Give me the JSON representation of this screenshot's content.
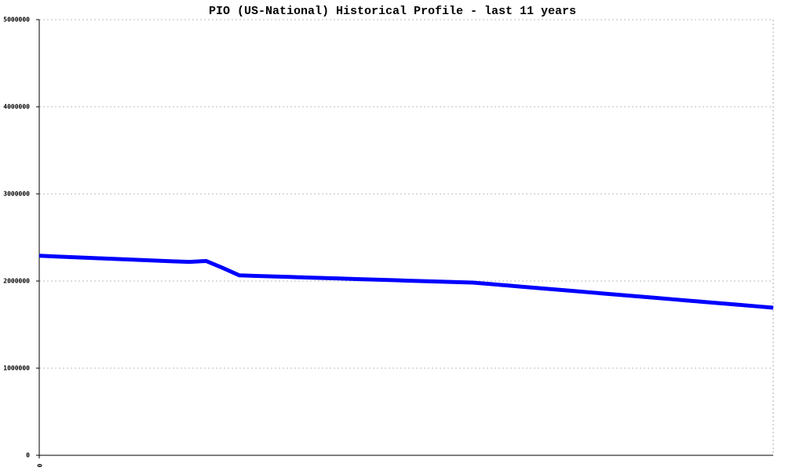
{
  "chart_data": {
    "type": "line",
    "title": "PIO (US-National) Historical Profile - last 11 years",
    "categories": [
      "0",
      null,
      null,
      null,
      null,
      null,
      null,
      null,
      null,
      null,
      null,
      null,
      null,
      null,
      null,
      null,
      null,
      null,
      null,
      null,
      null,
      null,
      null,
      null,
      null,
      null,
      null,
      null,
      null,
      null,
      null,
      null,
      null,
      null,
      null,
      null,
      null,
      null,
      null,
      null,
      null,
      null,
      null,
      null,
      null
    ],
    "series": [
      {
        "color": "#0000ff",
        "values": [
          2290000,
          2282000,
          2274000,
          2266000,
          2258000,
          2250000,
          2242000,
          2234000,
          2226000,
          2220000,
          2230000,
          2150000,
          2065000,
          2059000,
          2053000,
          2047000,
          2041000,
          2035000,
          2029000,
          2023000,
          2017000,
          2011000,
          2005000,
          1999000,
          1993000,
          1988000,
          1982000,
          1966000,
          1950000,
          1934000,
          1918000,
          1902000,
          1886000,
          1870000,
          1854000,
          1838000,
          1822000,
          1806000,
          1790000,
          1774000,
          1758000,
          1742000,
          1726000,
          1710000,
          1694000
        ]
      }
    ],
    "ylim": [
      0,
      5000000
    ],
    "yticks": [
      0,
      1000000,
      2000000,
      3000000,
      4000000,
      5000000
    ],
    "grid": true
  }
}
